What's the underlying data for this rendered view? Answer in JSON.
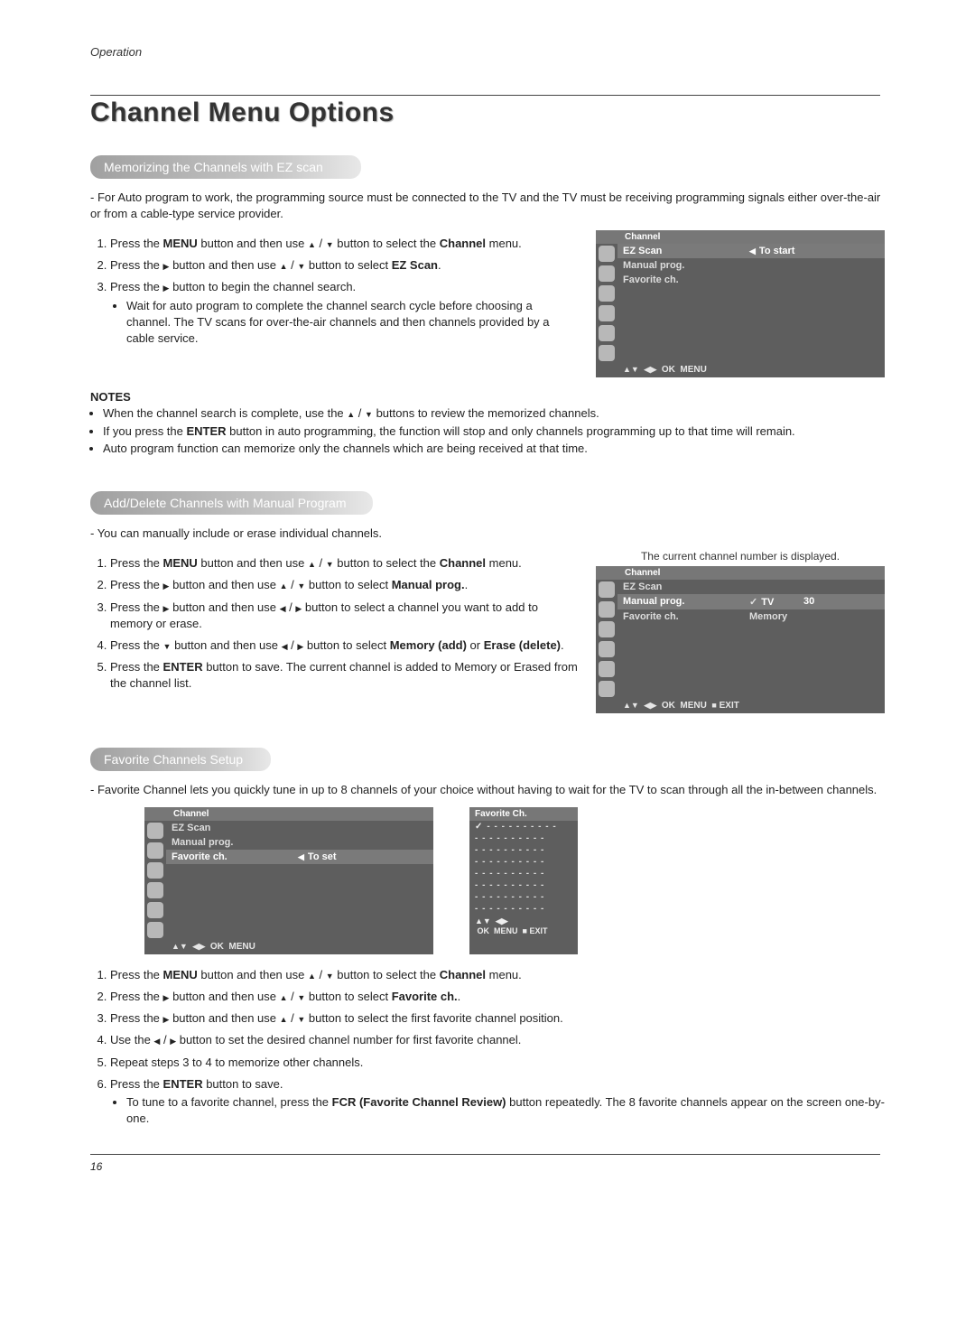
{
  "header": {
    "section": "Operation"
  },
  "title": "Channel Menu Options",
  "page_number": "16",
  "sec1": {
    "heading": "Memorizing the Channels with EZ scan",
    "intro": "- For Auto program to work, the programming source must be connected to the TV and the TV must be receiving programming signals either over-the-air or from a cable-type service provider.",
    "step1_a": "Press the ",
    "step1_menu": "MENU",
    "step1_b": " button and then use ",
    "step1_c": " button to select the ",
    "step1_channel": "Channel",
    "step1_d": " menu.",
    "step2_a": "Press the ",
    "step2_b": " button and then use ",
    "step2_c": " button to select ",
    "step2_ez": "EZ Scan",
    "step2_d": ".",
    "step3_a": "Press the ",
    "step3_b": " button to begin the channel search.",
    "sub1": "Wait for auto program to complete the channel search cycle before choosing a channel. The TV scans for over-the-air channels and then channels provided by a cable service.",
    "notes_label": "NOTES",
    "note1_a": "When the channel search is complete, use the ",
    "note1_b": " buttons to review the memorized channels.",
    "note2_a": "If you press the ",
    "note2_enter": "ENTER",
    "note2_b": " button in auto programming, the function will stop and only channels programming up to that time will remain.",
    "note3": "Auto program function can memorize only the channels which are being received at that time.",
    "osd": {
      "title": "Channel",
      "row1_left": "EZ Scan",
      "row1_right": "To start",
      "row2_left": "Manual prog.",
      "row3_left": "Favorite ch.",
      "footer_ok": "OK",
      "footer_menu": "MENU"
    }
  },
  "sec2": {
    "heading": "Add/Delete Channels with Manual Program",
    "intro": "-  You can manually include or erase individual channels.",
    "caption": "The current channel number is displayed.",
    "step1_a": "Press the ",
    "step1_menu": "MENU",
    "step1_b": " button and then use ",
    "step1_c": " button to select the ",
    "step1_channel": "Channel",
    "step1_d": " menu.",
    "step2_a": "Press the ",
    "step2_b": " button and then use ",
    "step2_c": " button to select ",
    "step2_mp": "Manual prog.",
    "step2_d": ".",
    "step3_a": "Press the ",
    "step3_b": " button and then use ",
    "step3_c": " button to select a channel you want to add to memory or erase.",
    "step4_a": "Press the ",
    "step4_b": " button and then use ",
    "step4_c": " button to select ",
    "step4_mem": "Memory (add)",
    "step4_or": " or ",
    "step4_er": "Erase",
    "step4_del": " (delete)",
    "step4_d": ".",
    "step5_a": "Press the ",
    "step5_enter": "ENTER",
    "step5_b": " button to save. The current channel is added to Memory or Erased from the channel list.",
    "osd": {
      "title": "Channel",
      "row1_left": "EZ Scan",
      "row2_left": "Manual prog.",
      "row2_mid": "TV",
      "row2_right": "30",
      "row3_left": "Favorite ch.",
      "row3_mid": "Memory",
      "footer_ok": "OK",
      "footer_menu": "MENU",
      "footer_exit": "EXIT"
    }
  },
  "sec3": {
    "heading": "Favorite Channels Setup",
    "intro": "-  Favorite Channel lets you quickly tune in up to 8 channels of your choice without having to wait for the TV to scan through all the in-between channels.",
    "osd": {
      "title": "Channel",
      "row1_left": "EZ Scan",
      "row2_left": "Manual prog.",
      "row3_left": "Favorite ch.",
      "row3_right": "To set",
      "footer_ok": "OK",
      "footer_menu": "MENU"
    },
    "fav": {
      "title": "Favorite Ch.",
      "dash": "- - - - - - - - - -",
      "footer_ok": "OK",
      "footer_menu": "MENU",
      "footer_exit": "EXIT"
    },
    "step1_a": "Press the ",
    "step1_menu": "MENU",
    "step1_b": " button and then use ",
    "step1_c": "  button to select the ",
    "step1_channel": "Channel",
    "step1_d": " menu.",
    "step2_a": "Press the ",
    "step2_b": " button and then use ",
    "step2_c": " button to select ",
    "step2_fav": "Favorite ch.",
    "step2_d": ".",
    "step3_a": "Press the ",
    "step3_b": " button and then use ",
    "step3_c": " button to select the first favorite channel position.",
    "step4_a": "Use the ",
    "step4_b": " button to set the desired channel number for first favorite channel.",
    "step5": "Repeat steps 3 to 4 to memorize other channels.",
    "step6_a": "Press the ",
    "step6_enter": "ENTER",
    "step6_b": " button to save.",
    "sub1_a": "To tune to a favorite channel, press the ",
    "sub1_fcr": "FCR (Favorite Channel Review)",
    "sub1_b": " button repeatedly. The 8 favorite channels appear on the screen one-by-one."
  },
  "glyphs": {
    "up": "▲",
    "down": "▼",
    "left": "◀",
    "right": "▶",
    "slash": " / "
  }
}
